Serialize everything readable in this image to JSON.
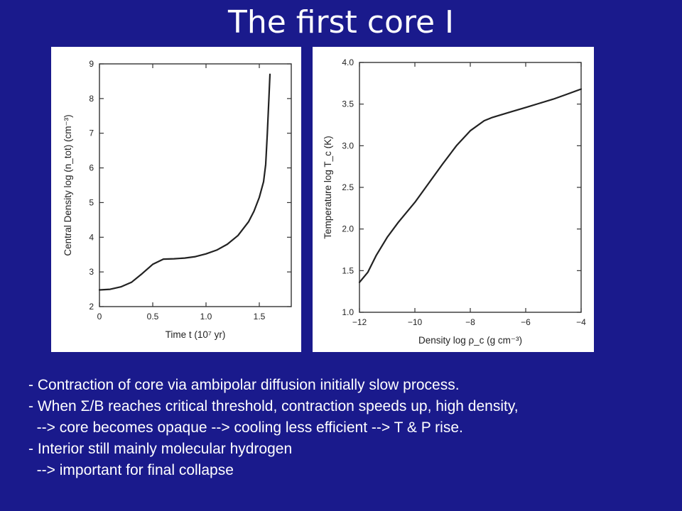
{
  "slide": {
    "title": "The first core I",
    "bullets": [
      "- Contraction of core via ambipolar diffusion initially slow process.",
      "- When Σ/B reaches critical threshold, contraction speeds up, high density,",
      "  --> core becomes opaque --> cooling less efficient --> T & P rise.",
      "- Interior still mainly molecular hydrogen",
      "  --> important for final collapse"
    ],
    "background_color": "#1a1a8c",
    "text_color": "#ffffff"
  },
  "chart_data": [
    {
      "type": "line",
      "xlabel": "Time   t   (10⁷ yr)",
      "ylabel": "Central Density   log (n_tot)   (cm⁻³)",
      "xlim": [
        0,
        1.8
      ],
      "ylim": [
        2,
        9
      ],
      "xticks": [
        0,
        0.5,
        1.0,
        1.5
      ],
      "xtick_labels": [
        "0",
        "0.5",
        "1.0",
        "1.5"
      ],
      "yticks": [
        2,
        3,
        4,
        5,
        6,
        7,
        8,
        9
      ],
      "ytick_labels": [
        "2",
        "3",
        "4",
        "5",
        "6",
        "7",
        "8",
        "9"
      ],
      "grid": false,
      "series": [
        {
          "x": [
            0,
            0.1,
            0.2,
            0.3,
            0.4,
            0.5,
            0.6,
            0.7,
            0.8,
            0.9,
            1.0,
            1.1,
            1.2,
            1.3,
            1.4,
            1.45,
            1.5,
            1.54,
            1.56,
            1.575,
            1.59,
            1.6
          ],
          "y": [
            2.48,
            2.5,
            2.57,
            2.7,
            2.95,
            3.22,
            3.37,
            3.38,
            3.4,
            3.44,
            3.52,
            3.63,
            3.8,
            4.05,
            4.45,
            4.75,
            5.15,
            5.6,
            6.1,
            7.0,
            8.0,
            8.7
          ]
        }
      ]
    },
    {
      "type": "line",
      "xlabel": "Density   log ρ_c   (g cm⁻³)",
      "ylabel": "Temperature   log T_c   (K)",
      "xlim": [
        -12,
        -4
      ],
      "ylim": [
        1.0,
        4.0
      ],
      "xticks": [
        -12,
        -10,
        -8,
        -6,
        -4
      ],
      "xtick_labels": [
        "−12",
        "−10",
        "−8",
        "−6",
        "−4"
      ],
      "yticks": [
        1.0,
        1.5,
        2.0,
        2.5,
        3.0,
        3.5,
        4.0
      ],
      "ytick_labels": [
        "1.0",
        "1.5",
        "2.0",
        "2.5",
        "3.0",
        "3.5",
        "4.0"
      ],
      "grid": false,
      "series": [
        {
          "x": [
            -12,
            -11.7,
            -11.4,
            -11.0,
            -10.6,
            -10.0,
            -9.5,
            -9.0,
            -8.5,
            -8.0,
            -7.5,
            -7.2,
            -7.0,
            -6.5,
            -6.0,
            -5.5,
            -5.0,
            -4.5,
            -4.0
          ],
          "y": [
            1.36,
            1.48,
            1.68,
            1.9,
            2.08,
            2.32,
            2.55,
            2.78,
            3.0,
            3.18,
            3.3,
            3.34,
            3.36,
            3.41,
            3.46,
            3.51,
            3.56,
            3.62,
            3.68
          ]
        }
      ]
    }
  ]
}
